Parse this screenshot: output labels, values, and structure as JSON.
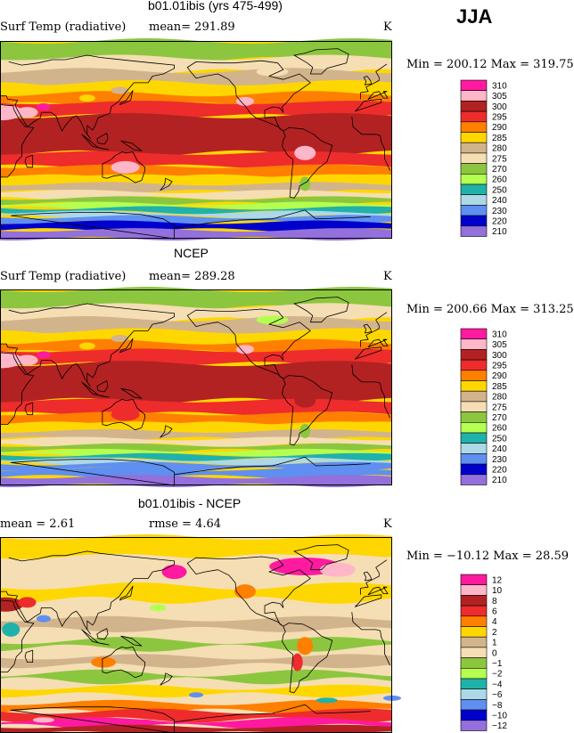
{
  "season_label": "JJA",
  "panels": [
    {
      "title": "b01.01ibis (yrs 475-499)",
      "variable": "Surf Temp (radiative)",
      "stat_text": "mean= 291.89",
      "units": "K",
      "minmax": "Min = 200.12 Max = 319.75"
    },
    {
      "title": "NCEP",
      "variable": "Surf Temp (radiative)",
      "stat_text": "mean= 289.28",
      "units": "K",
      "minmax": "Min = 200.66 Max = 313.25"
    },
    {
      "title": "b01.01ibis - NCEP",
      "stat_left": "mean =    2.61",
      "stat_right": "rmse =    4.64",
      "units": "K",
      "minmax": "Min = −10.12 Max =   28.59"
    }
  ],
  "chart_data": [
    {
      "type": "heatmap",
      "title": "b01.01ibis (yrs 475-499)",
      "variable": "Surf Temp (radiative)",
      "units": "K",
      "mean": 291.89,
      "min": 200.12,
      "max": 319.75,
      "colorbar_levels": [
        "310",
        "305",
        "300",
        "295",
        "290",
        "285",
        "280",
        "275",
        "270",
        "260",
        "250",
        "240",
        "230",
        "220",
        "210"
      ],
      "colorbar_colors": [
        "#ff1aa0",
        "#ffb6c8",
        "#b22222",
        "#ee2c2c",
        "#ff7f00",
        "#ffd700",
        "#d2b48c",
        "#f5deb3",
        "#8cc63f",
        "#b4ff50",
        "#20b2aa",
        "#add8e6",
        "#5f8ff0",
        "#0000cd",
        "#9370db"
      ]
    },
    {
      "type": "heatmap",
      "title": "NCEP",
      "variable": "Surf Temp (radiative)",
      "units": "K",
      "mean": 289.28,
      "min": 200.66,
      "max": 313.25,
      "colorbar_levels": [
        "310",
        "305",
        "300",
        "295",
        "290",
        "285",
        "280",
        "275",
        "270",
        "260",
        "250",
        "240",
        "230",
        "220",
        "210"
      ],
      "colorbar_colors": [
        "#ff1aa0",
        "#ffb6c8",
        "#b22222",
        "#ee2c2c",
        "#ff7f00",
        "#ffd700",
        "#d2b48c",
        "#f5deb3",
        "#8cc63f",
        "#b4ff50",
        "#20b2aa",
        "#add8e6",
        "#5f8ff0",
        "#0000cd",
        "#9370db"
      ]
    },
    {
      "type": "heatmap",
      "title": "b01.01ibis - NCEP",
      "units": "K",
      "mean": 2.61,
      "rmse": 4.64,
      "min": -10.12,
      "max": 28.59,
      "colorbar_levels": [
        "12",
        "10",
        "8",
        "6",
        "4",
        "2",
        "1",
        "0",
        "−1",
        "−2",
        "−4",
        "−6",
        "−8",
        "−10",
        "−12"
      ],
      "colorbar_colors": [
        "#ff1aa0",
        "#ffb6c8",
        "#b22222",
        "#ee2c2c",
        "#ff7f00",
        "#ffd700",
        "#d2b48c",
        "#f5deb3",
        "#8cc63f",
        "#b4ff50",
        "#20b2aa",
        "#add8e6",
        "#5f8ff0",
        "#0000cd",
        "#9370db"
      ]
    }
  ]
}
